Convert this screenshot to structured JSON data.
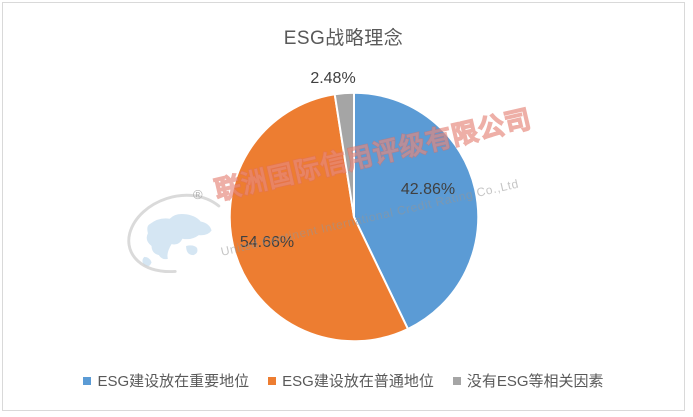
{
  "frame": {
    "border_color": "#D9D9D9",
    "background": "#FFFFFF"
  },
  "chart_data": {
    "type": "pie",
    "title": "ESG战略理念",
    "categories": [
      "ESG建设放在重要地位",
      "ESG建设放在普通地位",
      "没有ESG等相关因素"
    ],
    "values": [
      42.86,
      54.66,
      2.48
    ],
    "data_labels": [
      "42.86%",
      "54.66%",
      "2.48%"
    ],
    "colors": [
      "#5B9BD5",
      "#ED7D31",
      "#A5A5A5"
    ],
    "start_angle_deg": 0,
    "direction": "clockwise",
    "legend_position": "bottom",
    "title_color": "#595959",
    "data_label_color": "#404040",
    "legend_text_color": "#595959"
  },
  "watermark": {
    "company_name_cn": "联洲国际信用评级有限公司",
    "company_name_en": "United Continent International Credit Rating Co.,Ltd",
    "registered_symbol": "®",
    "logo": "globe-with-orbit-swoosh",
    "cn_outline_color": "#E06E5F",
    "en_text_color": "#969696",
    "globe_map_color": "#C9DFF0",
    "orbit_color": "#CCCCCC"
  }
}
